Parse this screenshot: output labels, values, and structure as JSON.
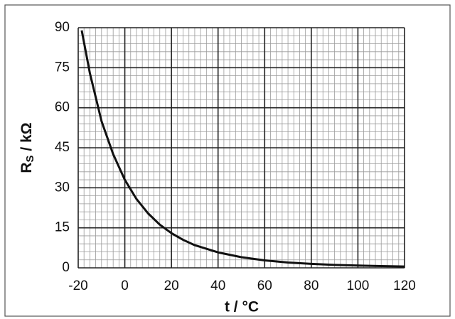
{
  "chart_data": {
    "type": "line",
    "x_label": "t / °C",
    "y_label": {
      "main": "R",
      "sub": "S",
      "rest": " / kΩ"
    },
    "x": [
      -18.5,
      -15,
      -10,
      -5,
      0,
      5,
      10,
      15,
      20,
      25,
      30,
      40,
      50,
      60,
      70,
      80,
      90,
      100,
      110,
      120
    ],
    "series": [
      {
        "color": "#111111",
        "values": [
          89,
          73,
          55,
          42.6,
          33,
          25.8,
          20.4,
          16.2,
          13,
          10.5,
          8.5,
          5.8,
          4,
          2.8,
          2,
          1.5,
          1.1,
          0.85,
          0.65,
          0.5
        ]
      }
    ],
    "xlim": [
      -20,
      120
    ],
    "ylim": [
      0,
      90
    ],
    "xticks": [
      -20,
      0,
      20,
      40,
      60,
      80,
      100,
      120
    ],
    "yticks": [
      0,
      15,
      30,
      45,
      60,
      75,
      90
    ],
    "grid": true,
    "minor_grid": {
      "x_divisions": 8,
      "y_divisions": 5
    }
  }
}
